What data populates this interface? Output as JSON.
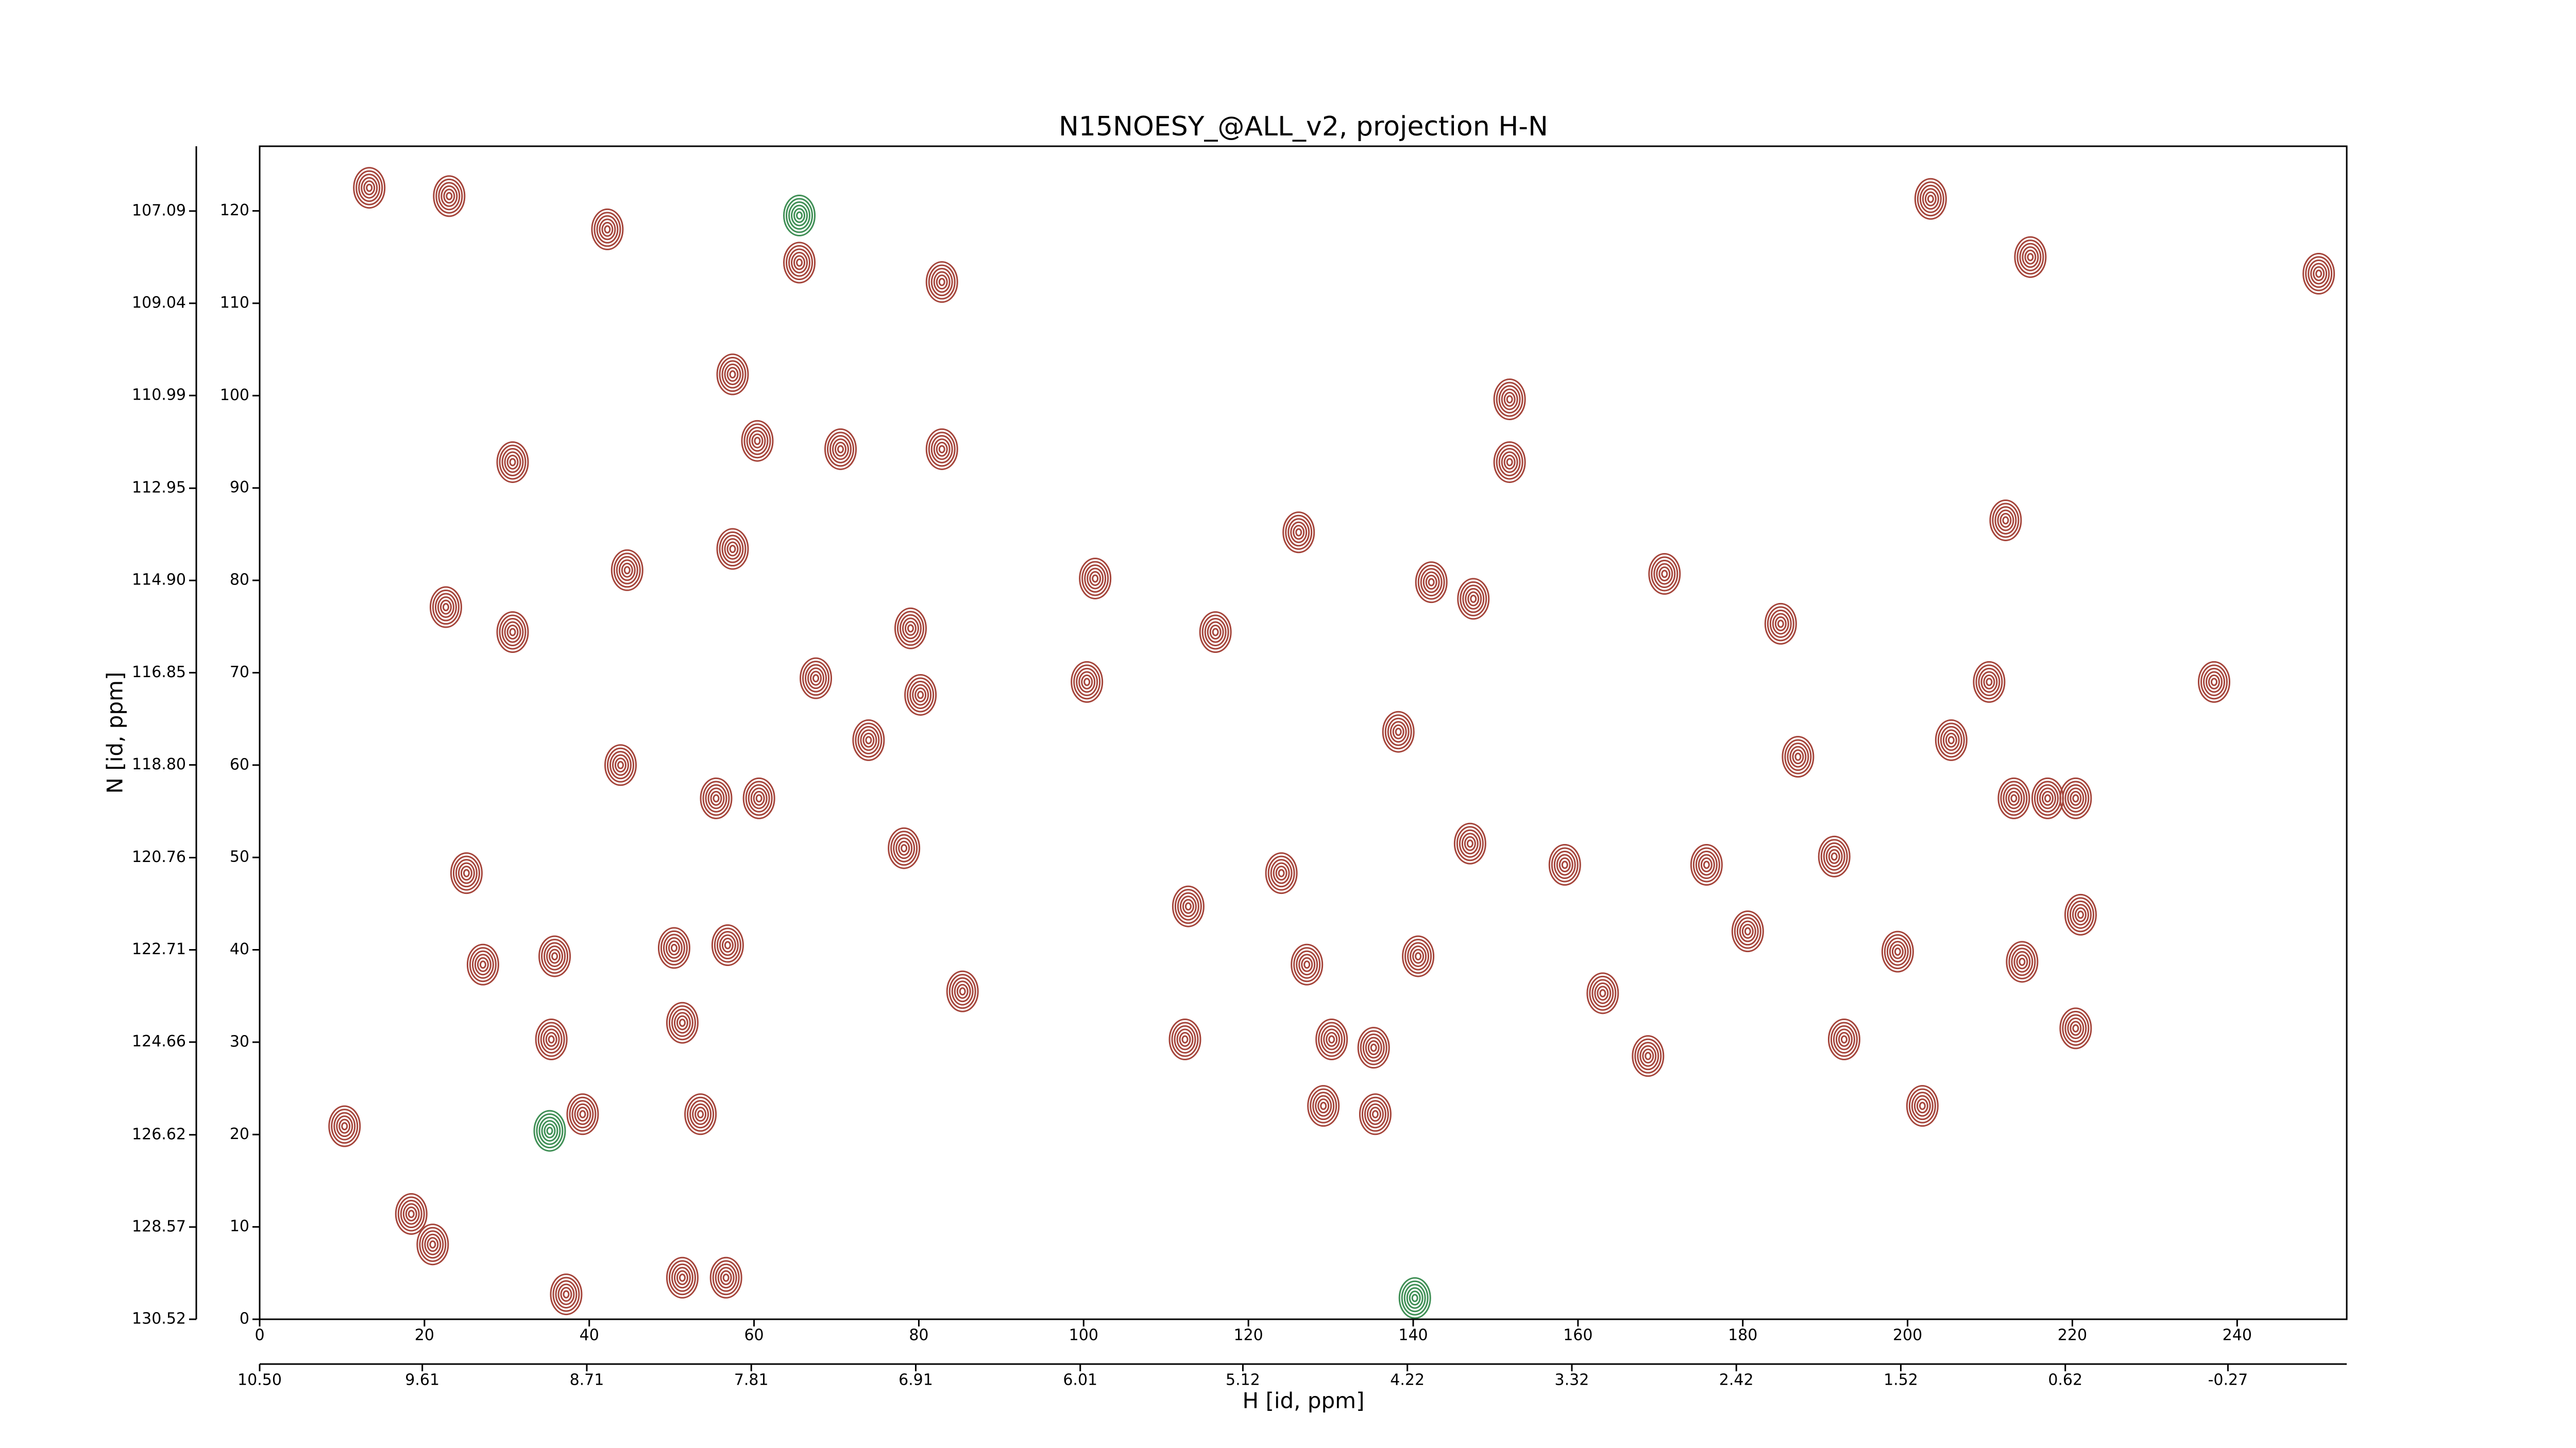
{
  "chart_data": {
    "type": "contour",
    "title": "N15NOESY_@ALL_v2, projection H-N",
    "x_label": "H [id, ppm]",
    "y_label": "N [id, ppm]",
    "xlim": [
      0,
      253.3
    ],
    "xticks": [
      0,
      20,
      40,
      60,
      80,
      100,
      120,
      140,
      160,
      180,
      200,
      220,
      240
    ],
    "ylim": [
      0,
      127
    ],
    "yticks": [
      0,
      10,
      20,
      30,
      40,
      50,
      60,
      70,
      80,
      90,
      100,
      110,
      120
    ],
    "x2lim": [
      10.5,
      -0.92
    ],
    "x2ticks": [
      {
        "value": 10.5,
        "label": "10.50"
      },
      9.61,
      8.71,
      7.81,
      6.91,
      6.01,
      5.12,
      4.22,
      3.32,
      2.42,
      1.52,
      0.62,
      -0.27
    ],
    "y2lim": [
      130.52,
      105.72
    ],
    "y2ticks": [
      130.52,
      128.57,
      126.62,
      124.66,
      122.71,
      120.76,
      {
        "value": 118.8,
        "label": "118.80"
      },
      116.85,
      {
        "value": 114.9,
        "label": "114.90"
      },
      112.95,
      110.99,
      109.04,
      107.09
    ],
    "series": [
      {
        "color": "#a5453b",
        "x": [
          13.3,
          23.0,
          42.2,
          65.5,
          82.8,
          57.4,
          70.5,
          82.8,
          30.7,
          60.4,
          151.7,
          151.7,
          101.4,
          44.6,
          57.4,
          22.6,
          30.7,
          79.0,
          100.4,
          67.5,
          73.9,
          80.2,
          43.8,
          60.6,
          55.4,
          78.2,
          25.1,
          27.1,
          35.8,
          50.3,
          56.8,
          85.3,
          51.3,
          35.4,
          10.3,
          39.2,
          53.5,
          18.4,
          21.0,
          37.2,
          51.3,
          56.6,
          112.7,
          112.3,
          127.1,
          140.6,
          130.1,
          135.2,
          129.1,
          135.4,
          212.9,
          217.0,
          220.4,
          249.9,
          202.8,
          214.9,
          192.3,
          201.8,
          220.4,
          198.8,
          213.9,
          221.0,
          191.1,
          211.9,
          209.9,
          205.3,
          237.2,
          184.6,
          186.7,
          170.5,
          147.3,
          142.2,
          116.0,
          126.1,
          138.2,
          124.0,
          146.9,
          163.0,
          168.5,
          158.4,
          175.6,
          180.6
        ],
        "y": [
          122.5,
          121.6,
          118.0,
          114.4,
          112.3,
          102.3,
          94.2,
          94.2,
          92.8,
          95.1,
          99.6,
          92.8,
          80.2,
          81.1,
          83.4,
          77.1,
          74.4,
          74.8,
          69.0,
          69.4,
          62.7,
          67.6,
          60.0,
          56.4,
          56.4,
          51.0,
          48.3,
          38.4,
          39.3,
          40.2,
          40.5,
          35.5,
          32.1,
          30.3,
          20.9,
          22.2,
          22.2,
          11.4,
          8.1,
          2.7,
          4.5,
          4.5,
          44.7,
          30.3,
          38.4,
          39.3,
          30.3,
          29.4,
          23.1,
          22.2,
          56.4,
          56.4,
          56.4,
          113.2,
          121.3,
          115.0,
          30.3,
          23.1,
          31.5,
          39.8,
          38.7,
          43.8,
          50.1,
          86.5,
          69.0,
          62.7,
          69.0,
          75.3,
          60.9,
          80.7,
          78.0,
          79.8,
          74.4,
          85.2,
          63.6,
          48.3,
          51.5,
          35.3,
          28.5,
          49.2,
          49.2,
          42.0
        ]
      },
      {
        "color": "#3f8f55",
        "x": [
          65.5,
          140.2,
          35.2
        ],
        "y": [
          119.5,
          2.3,
          20.4
        ]
      }
    ]
  }
}
